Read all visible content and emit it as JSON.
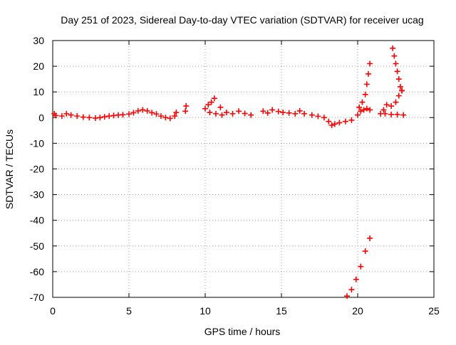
{
  "chart_data": {
    "type": "scatter",
    "title": "Day 251 of 2023, Sidereal Day-to-day VTEC variation (SDTVAR) for receiver ucag",
    "xlabel": "GPS time / hours",
    "ylabel": "SDTVAR / TECUs",
    "xlim": [
      0,
      25
    ],
    "ylim": [
      -70,
      30
    ],
    "xticks": [
      0,
      5,
      10,
      15,
      20,
      25
    ],
    "yticks": [
      -70,
      -60,
      -50,
      -40,
      -30,
      -20,
      -10,
      0,
      10,
      20,
      30
    ],
    "grid": true,
    "marker": "plus",
    "marker_color": "#ff0000",
    "series": [
      {
        "name": "SDTVAR",
        "points": [
          [
            0.1,
            1.5
          ],
          [
            0.2,
            0.8
          ],
          [
            0.6,
            0.6
          ],
          [
            0.9,
            1.5
          ],
          [
            1.2,
            1.0
          ],
          [
            1.6,
            0.6
          ],
          [
            2.0,
            0.2
          ],
          [
            2.4,
            0.0
          ],
          [
            2.8,
            -0.2
          ],
          [
            3.1,
            0.0
          ],
          [
            3.4,
            0.3
          ],
          [
            3.7,
            0.6
          ],
          [
            4.0,
            0.8
          ],
          [
            4.3,
            1.0
          ],
          [
            4.6,
            1.1
          ],
          [
            5.0,
            1.4
          ],
          [
            5.3,
            1.9
          ],
          [
            5.6,
            2.6
          ],
          [
            5.9,
            3.0
          ],
          [
            6.2,
            2.6
          ],
          [
            6.5,
            1.9
          ],
          [
            6.8,
            1.4
          ],
          [
            7.1,
            0.6
          ],
          [
            7.4,
            0.0
          ],
          [
            7.7,
            -0.3
          ],
          [
            8.0,
            0.6
          ],
          [
            8.1,
            2.0
          ],
          [
            8.7,
            2.5
          ],
          [
            8.75,
            4.5
          ],
          [
            10.0,
            3.5
          ],
          [
            10.2,
            5.0
          ],
          [
            10.4,
            6.0
          ],
          [
            10.6,
            7.5
          ],
          [
            10.3,
            2.0
          ],
          [
            10.7,
            1.5
          ],
          [
            11.0,
            4.0
          ],
          [
            11.1,
            1.0
          ],
          [
            11.4,
            2.0
          ],
          [
            11.8,
            1.5
          ],
          [
            12.2,
            2.5
          ],
          [
            12.6,
            1.6
          ],
          [
            13.0,
            1.0
          ],
          [
            13.8,
            2.5
          ],
          [
            14.1,
            1.8
          ],
          [
            14.4,
            3.0
          ],
          [
            14.8,
            2.4
          ],
          [
            15.1,
            2.0
          ],
          [
            15.5,
            1.8
          ],
          [
            15.9,
            1.5
          ],
          [
            16.2,
            2.6
          ],
          [
            16.5,
            1.5
          ],
          [
            17.0,
            1.0
          ],
          [
            17.4,
            0.5
          ],
          [
            17.8,
            0.0
          ],
          [
            18.1,
            -1.5
          ],
          [
            18.3,
            -3.0
          ],
          [
            18.5,
            -2.5
          ],
          [
            18.8,
            -2.0
          ],
          [
            19.2,
            -1.5
          ],
          [
            19.6,
            -1.0
          ],
          [
            20.0,
            1.0
          ],
          [
            20.2,
            2.5
          ],
          [
            20.4,
            3.0
          ],
          [
            20.6,
            3.5
          ],
          [
            20.8,
            3.0
          ],
          [
            20.1,
            4.0
          ],
          [
            20.3,
            6.0
          ],
          [
            20.5,
            9.0
          ],
          [
            20.6,
            13.0
          ],
          [
            20.7,
            17.0
          ],
          [
            20.8,
            21.0
          ],
          [
            21.5,
            1.5
          ],
          [
            21.8,
            1.5
          ],
          [
            22.2,
            1.2
          ],
          [
            22.6,
            1.2
          ],
          [
            23.0,
            1.0
          ],
          [
            21.7,
            3.0
          ],
          [
            21.9,
            5.0
          ],
          [
            22.2,
            4.5
          ],
          [
            22.5,
            6.0
          ],
          [
            22.7,
            8.5
          ],
          [
            22.9,
            10.5
          ],
          [
            22.3,
            27.0
          ],
          [
            22.4,
            24.0
          ],
          [
            22.5,
            21.0
          ],
          [
            22.6,
            18.0
          ],
          [
            22.7,
            15.0
          ],
          [
            22.8,
            12.0
          ],
          [
            22.9,
            10.5
          ],
          [
            19.3,
            -69.5
          ],
          [
            19.6,
            -67.0
          ],
          [
            19.9,
            -63.0
          ],
          [
            20.2,
            -58.0
          ],
          [
            20.5,
            -52.0
          ],
          [
            20.8,
            -47.0
          ]
        ]
      }
    ]
  }
}
